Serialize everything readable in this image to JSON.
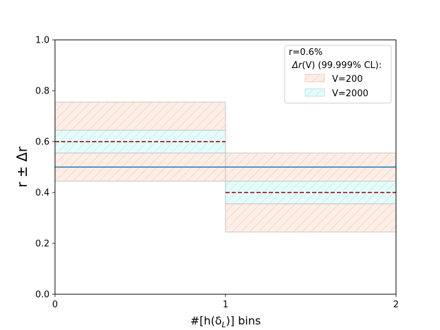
{
  "chart_data": {
    "type": "step",
    "xlabel": "#[h(δ_L)] bins",
    "xlabel_main": "#[h(δ",
    "xlabel_sub": "L",
    "xlabel_tail": ")] bins",
    "ylabel": "r ± Δr",
    "xlim": [
      0,
      2
    ],
    "ylim": [
      0,
      1
    ],
    "x_ticks": [
      "0",
      "1",
      "2"
    ],
    "y_ticks": [
      "0.0",
      "0.2",
      "0.4",
      "0.6",
      "0.8",
      "1.0"
    ],
    "bins": [
      [
        0,
        1
      ],
      [
        1,
        2
      ]
    ],
    "true_r": {
      "value": 0.5,
      "color": "#1f77b4"
    },
    "estimate": {
      "values": [
        0.6,
        0.4
      ],
      "color": "#8b0000"
    },
    "bands": [
      {
        "name": "V=200",
        "lower": [
          0.445,
          0.245
        ],
        "upper": [
          0.755,
          0.555
        ],
        "fill": "#fdeee6",
        "hatch": "#e6b6a0"
      },
      {
        "name": "V=2000",
        "lower": [
          0.555,
          0.355
        ],
        "upper": [
          0.645,
          0.445
        ],
        "fill": "#e6fbfb",
        "hatch": "#9fdede"
      }
    ],
    "legend": {
      "title_line1": "r=0.6%",
      "title_line2_italic": "Δr",
      "title_line2_rest": "(V) (99.999% CL):",
      "placement": "top-right"
    },
    "grid": false
  }
}
